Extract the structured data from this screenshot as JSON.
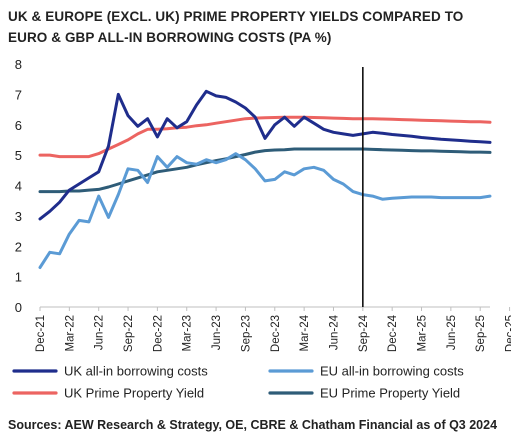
{
  "chart_data": {
    "type": "line",
    "title": "UK & EUROPE (EXCL. UK) PRIME PROPERTY YIELDS COMPARED TO EURO & GBP ALL-IN BORROWING COSTS (PA %)",
    "xlabel": "",
    "ylabel": "",
    "ylim": [
      0,
      8
    ],
    "yticks": [
      0,
      1,
      2,
      3,
      4,
      5,
      6,
      7,
      8
    ],
    "grid": false,
    "legend_position": "bottom",
    "x_tick_labels": [
      "Dec-21",
      "Mar-22",
      "Jun-22",
      "Sep-22",
      "Dec-22",
      "Mar-23",
      "Jun-23",
      "Sep-23",
      "Dec-23",
      "Mar-24",
      "Jun-24",
      "Sep-24",
      "Dec-24",
      "Mar-25",
      "Jun-25",
      "Sep-25",
      "Dec-25"
    ],
    "vline_label": "Sep-24",
    "series": [
      {
        "name": "UK all-in borrowing costs",
        "color": "#1f2d8c",
        "values": [
          2.9,
          3.15,
          3.45,
          3.85,
          4.05,
          4.25,
          4.45,
          5.3,
          7.0,
          6.3,
          5.95,
          6.2,
          5.6,
          6.2,
          5.9,
          6.1,
          6.65,
          7.1,
          6.95,
          6.9,
          6.75,
          6.55,
          6.25,
          5.55,
          6.0,
          6.25,
          5.95,
          6.25,
          6.05,
          5.85,
          5.75,
          5.7,
          5.65,
          5.7,
          5.75,
          5.72,
          5.68,
          5.65,
          5.62,
          5.58,
          5.55,
          5.52,
          5.5,
          5.48,
          5.46,
          5.44,
          5.42
        ]
      },
      {
        "name": "EU all-in borrowing costs",
        "color": "#5b9bd5",
        "values": [
          1.3,
          1.8,
          1.75,
          2.4,
          2.85,
          2.8,
          3.65,
          2.95,
          3.7,
          4.55,
          4.5,
          4.1,
          4.95,
          4.6,
          4.95,
          4.75,
          4.7,
          4.85,
          4.75,
          4.85,
          5.05,
          4.85,
          4.55,
          4.15,
          4.2,
          4.45,
          4.35,
          4.55,
          4.6,
          4.5,
          4.2,
          4.05,
          3.8,
          3.7,
          3.65,
          3.55,
          3.58,
          3.6,
          3.62,
          3.62,
          3.62,
          3.6,
          3.6,
          3.6,
          3.6,
          3.6,
          3.65
        ]
      },
      {
        "name": "UK Prime Property Yield",
        "color": "#ec6461",
        "values": [
          5.0,
          5.0,
          4.95,
          4.95,
          4.95,
          4.95,
          5.05,
          5.2,
          5.35,
          5.5,
          5.7,
          5.85,
          5.85,
          5.87,
          5.9,
          5.92,
          5.97,
          6.0,
          6.05,
          6.1,
          6.15,
          6.2,
          6.22,
          6.23,
          6.24,
          6.25,
          6.25,
          6.25,
          6.24,
          6.23,
          6.22,
          6.21,
          6.2,
          6.2,
          6.2,
          6.19,
          6.18,
          6.17,
          6.16,
          6.15,
          6.14,
          6.13,
          6.12,
          6.11,
          6.1,
          6.1,
          6.08
        ]
      },
      {
        "name": "EU Prime Property Yield",
        "color": "#2e5c78",
        "values": [
          3.8,
          3.8,
          3.8,
          3.82,
          3.82,
          3.85,
          3.87,
          3.95,
          4.05,
          4.15,
          4.25,
          4.35,
          4.45,
          4.5,
          4.55,
          4.6,
          4.68,
          4.75,
          4.82,
          4.88,
          4.95,
          5.02,
          5.1,
          5.15,
          5.17,
          5.18,
          5.2,
          5.2,
          5.2,
          5.2,
          5.2,
          5.2,
          5.2,
          5.2,
          5.19,
          5.18,
          5.17,
          5.16,
          5.15,
          5.14,
          5.14,
          5.13,
          5.12,
          5.11,
          5.1,
          5.1,
          5.09
        ]
      }
    ]
  },
  "source_text": "Sources: AEW Research & Strategy, OE, CBRE & Chatham Financial as of Q3 2024"
}
